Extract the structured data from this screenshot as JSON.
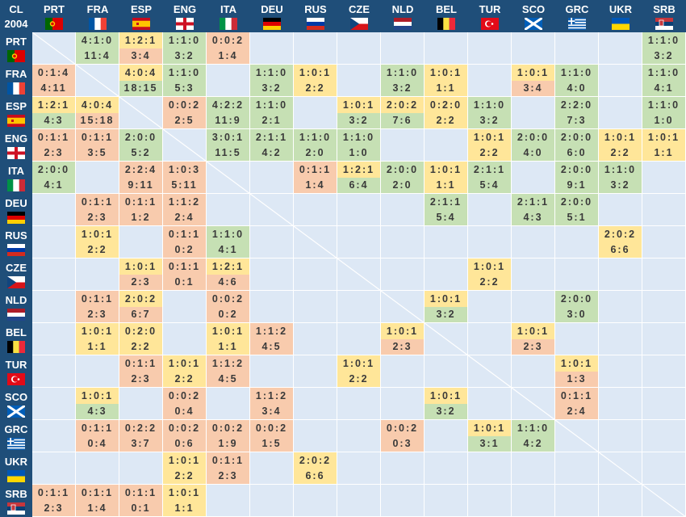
{
  "corner": {
    "line1": "CL",
    "line2": "2004"
  },
  "teams": [
    "PRT",
    "FRA",
    "ESP",
    "ENG",
    "ITA",
    "DEU",
    "RUS",
    "CZE",
    "NLD",
    "BEL",
    "TUR",
    "SCO",
    "GRC",
    "UKR",
    "SRB"
  ],
  "colors": {
    "g": "#c6e0b4",
    "y": "#ffe699",
    "o": "#f8cbad",
    "header": "#1f4e79",
    "background": "#dde8f5"
  },
  "rows": [
    {
      "team": "PRT",
      "cells": {
        "FRA": [
          "4:1:0",
          "11:4",
          "g",
          "g"
        ],
        "ESP": [
          "1:2:1",
          "3:4",
          "y",
          "o"
        ],
        "ENG": [
          "1:1:0",
          "3:2",
          "g",
          "g"
        ],
        "ITA": [
          "0:0:2",
          "1:4",
          "o",
          "o"
        ],
        "SRB": [
          "1:1:0",
          "3:2",
          "g",
          "g"
        ]
      }
    },
    {
      "team": "FRA",
      "cells": {
        "PRT": [
          "0:1:4",
          "4:11",
          "o",
          "o"
        ],
        "ESP": [
          "4:0:4",
          "18:15",
          "y",
          "g"
        ],
        "ENG": [
          "1:1:0",
          "5:3",
          "g",
          "g"
        ],
        "DEU": [
          "1:1:0",
          "3:2",
          "g",
          "g"
        ],
        "RUS": [
          "1:0:1",
          "2:2",
          "y",
          "y"
        ],
        "NLD": [
          "1:1:0",
          "3:2",
          "g",
          "g"
        ],
        "BEL": [
          "1:0:1",
          "1:1",
          "y",
          "y"
        ],
        "SCO": [
          "1:0:1",
          "3:4",
          "y",
          "o"
        ],
        "GRC": [
          "1:1:0",
          "4:0",
          "g",
          "g"
        ],
        "SRB": [
          "1:1:0",
          "4:1",
          "g",
          "g"
        ]
      }
    },
    {
      "team": "ESP",
      "cells": {
        "PRT": [
          "1:2:1",
          "4:3",
          "y",
          "g"
        ],
        "FRA": [
          "4:0:4",
          "15:18",
          "y",
          "o"
        ],
        "ENG": [
          "0:0:2",
          "2:5",
          "o",
          "o"
        ],
        "ITA": [
          "4:2:2",
          "11:9",
          "g",
          "g"
        ],
        "DEU": [
          "1:1:0",
          "2:1",
          "g",
          "g"
        ],
        "CZE": [
          "1:0:1",
          "3:2",
          "y",
          "g"
        ],
        "NLD": [
          "2:0:2",
          "7:6",
          "y",
          "g"
        ],
        "BEL": [
          "0:2:0",
          "2:2",
          "y",
          "y"
        ],
        "TUR": [
          "1:1:0",
          "3:2",
          "g",
          "g"
        ],
        "GRC": [
          "2:2:0",
          "7:3",
          "g",
          "g"
        ],
        "SRB": [
          "1:1:0",
          "1:0",
          "g",
          "g"
        ]
      }
    },
    {
      "team": "ENG",
      "cells": {
        "PRT": [
          "0:1:1",
          "2:3",
          "o",
          "o"
        ],
        "FRA": [
          "0:1:1",
          "3:5",
          "o",
          "o"
        ],
        "ESP": [
          "2:0:0",
          "5:2",
          "g",
          "g"
        ],
        "ITA": [
          "3:0:1",
          "11:5",
          "g",
          "g"
        ],
        "DEU": [
          "2:1:1",
          "4:2",
          "g",
          "g"
        ],
        "RUS": [
          "1:1:0",
          "2:0",
          "g",
          "g"
        ],
        "CZE": [
          "1:1:0",
          "1:0",
          "g",
          "g"
        ],
        "TUR": [
          "1:0:1",
          "2:2",
          "y",
          "y"
        ],
        "SCO": [
          "2:0:0",
          "4:0",
          "g",
          "g"
        ],
        "GRC": [
          "2:0:0",
          "6:0",
          "g",
          "g"
        ],
        "UKR": [
          "1:0:1",
          "2:2",
          "y",
          "y"
        ],
        "SRB": [
          "1:0:1",
          "1:1",
          "y",
          "y"
        ]
      }
    },
    {
      "team": "ITA",
      "cells": {
        "PRT": [
          "2:0:0",
          "4:1",
          "g",
          "g"
        ],
        "ESP": [
          "2:2:4",
          "9:11",
          "o",
          "o"
        ],
        "ENG": [
          "1:0:3",
          "5:11",
          "o",
          "o"
        ],
        "RUS": [
          "0:1:1",
          "1:4",
          "o",
          "o"
        ],
        "CZE": [
          "1:2:1",
          "6:4",
          "y",
          "g"
        ],
        "NLD": [
          "2:0:0",
          "2:0",
          "g",
          "g"
        ],
        "BEL": [
          "1:0:1",
          "1:1",
          "y",
          "y"
        ],
        "TUR": [
          "2:1:1",
          "5:4",
          "g",
          "g"
        ],
        "GRC": [
          "2:0:0",
          "9:1",
          "g",
          "g"
        ],
        "UKR": [
          "1:1:0",
          "3:2",
          "g",
          "g"
        ]
      }
    },
    {
      "team": "DEU",
      "cells": {
        "FRA": [
          "0:1:1",
          "2:3",
          "o",
          "o"
        ],
        "ESP": [
          "0:1:1",
          "1:2",
          "o",
          "o"
        ],
        "ENG": [
          "1:1:2",
          "2:4",
          "o",
          "o"
        ],
        "BEL": [
          "2:1:1",
          "5:4",
          "g",
          "g"
        ],
        "SCO": [
          "2:1:1",
          "4:3",
          "g",
          "g"
        ],
        "GRC": [
          "2:0:0",
          "5:1",
          "g",
          "g"
        ]
      }
    },
    {
      "team": "RUS",
      "cells": {
        "FRA": [
          "1:0:1",
          "2:2",
          "y",
          "y"
        ],
        "ENG": [
          "0:1:1",
          "0:2",
          "o",
          "o"
        ],
        "ITA": [
          "1:1:0",
          "4:1",
          "g",
          "g"
        ],
        "UKR": [
          "2:0:2",
          "6:6",
          "y",
          "y"
        ]
      }
    },
    {
      "team": "CZE",
      "cells": {
        "ESP": [
          "1:0:1",
          "2:3",
          "y",
          "o"
        ],
        "ENG": [
          "0:1:1",
          "0:1",
          "o",
          "o"
        ],
        "ITA": [
          "1:2:1",
          "4:6",
          "y",
          "o"
        ],
        "TUR": [
          "1:0:1",
          "2:2",
          "y",
          "y"
        ]
      }
    },
    {
      "team": "NLD",
      "cells": {
        "FRA": [
          "0:1:1",
          "2:3",
          "o",
          "o"
        ],
        "ESP": [
          "2:0:2",
          "6:7",
          "y",
          "o"
        ],
        "ITA": [
          "0:0:2",
          "0:2",
          "o",
          "o"
        ],
        "BEL": [
          "1:0:1",
          "3:2",
          "y",
          "g"
        ],
        "GRC": [
          "2:0:0",
          "3:0",
          "g",
          "g"
        ]
      }
    },
    {
      "team": "BEL",
      "cells": {
        "FRA": [
          "1:0:1",
          "1:1",
          "y",
          "y"
        ],
        "ESP": [
          "0:2:0",
          "2:2",
          "y",
          "y"
        ],
        "ITA": [
          "1:0:1",
          "1:1",
          "y",
          "y"
        ],
        "DEU": [
          "1:1:2",
          "4:5",
          "o",
          "o"
        ],
        "NLD": [
          "1:0:1",
          "2:3",
          "y",
          "o"
        ],
        "SCO": [
          "1:0:1",
          "2:3",
          "y",
          "o"
        ]
      }
    },
    {
      "team": "TUR",
      "cells": {
        "ESP": [
          "0:1:1",
          "2:3",
          "o",
          "o"
        ],
        "ENG": [
          "1:0:1",
          "2:2",
          "y",
          "y"
        ],
        "ITA": [
          "1:1:2",
          "4:5",
          "o",
          "o"
        ],
        "CZE": [
          "1:0:1",
          "2:2",
          "y",
          "y"
        ],
        "GRC": [
          "1:0:1",
          "1:3",
          "y",
          "o"
        ]
      }
    },
    {
      "team": "SCO",
      "cells": {
        "FRA": [
          "1:0:1",
          "4:3",
          "y",
          "g"
        ],
        "ENG": [
          "0:0:2",
          "0:4",
          "o",
          "o"
        ],
        "DEU": [
          "1:1:2",
          "3:4",
          "o",
          "o"
        ],
        "BEL": [
          "1:0:1",
          "3:2",
          "y",
          "g"
        ],
        "GRC": [
          "0:1:1",
          "2:4",
          "o",
          "o"
        ]
      }
    },
    {
      "team": "GRC",
      "cells": {
        "FRA": [
          "0:1:1",
          "0:4",
          "o",
          "o"
        ],
        "ESP": [
          "0:2:2",
          "3:7",
          "o",
          "o"
        ],
        "ENG": [
          "0:0:2",
          "0:6",
          "o",
          "o"
        ],
        "ITA": [
          "0:0:2",
          "1:9",
          "o",
          "o"
        ],
        "DEU": [
          "0:0:2",
          "1:5",
          "o",
          "o"
        ],
        "NLD": [
          "0:0:2",
          "0:3",
          "o",
          "o"
        ],
        "TUR": [
          "1:0:1",
          "3:1",
          "y",
          "g"
        ],
        "SCO": [
          "1:1:0",
          "4:2",
          "g",
          "g"
        ]
      }
    },
    {
      "team": "UKR",
      "cells": {
        "ENG": [
          "1:0:1",
          "2:2",
          "y",
          "y"
        ],
        "ITA": [
          "0:1:1",
          "2:3",
          "o",
          "o"
        ],
        "RUS": [
          "2:0:2",
          "6:6",
          "y",
          "y"
        ]
      }
    },
    {
      "team": "SRB",
      "cells": {
        "PRT": [
          "0:1:1",
          "2:3",
          "o",
          "o"
        ],
        "FRA": [
          "0:1:1",
          "1:4",
          "o",
          "o"
        ],
        "ESP": [
          "0:1:1",
          "0:1",
          "o",
          "o"
        ],
        "ENG": [
          "1:0:1",
          "1:1",
          "y",
          "y"
        ]
      }
    }
  ]
}
